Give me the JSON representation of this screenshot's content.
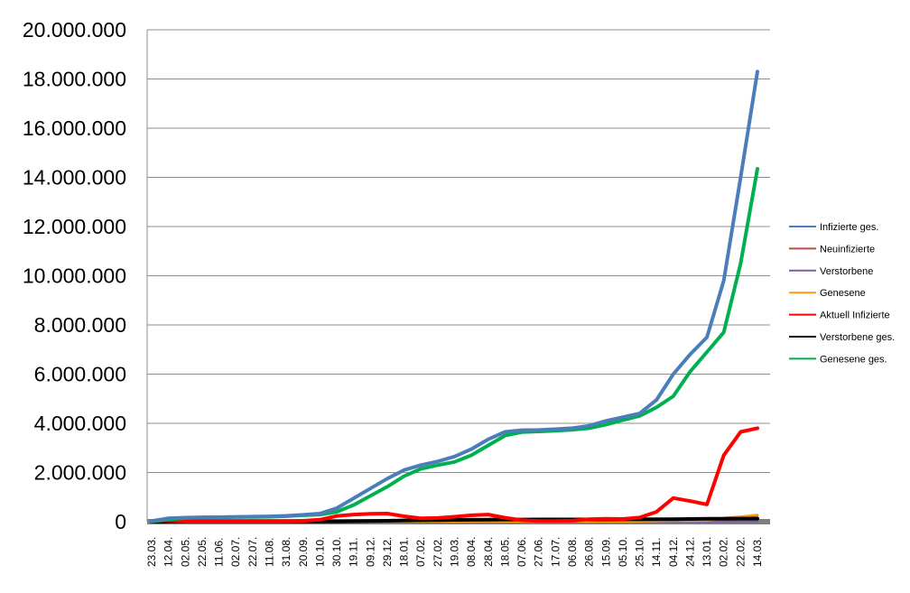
{
  "chart_data": {
    "type": "line",
    "title": "",
    "xlabel": "",
    "ylabel": "",
    "ylim": [
      0,
      20000000
    ],
    "yticks": [
      "0",
      "2.000.000",
      "4.000.000",
      "6.000.000",
      "8.000.000",
      "10.000.000",
      "12.000.000",
      "14.000.000",
      "16.000.000",
      "18.000.000",
      "20.000.000"
    ],
    "grid": "horizontal",
    "legend_position": "right",
    "categories": [
      "23.03.",
      "12.04.",
      "02.05.",
      "22.05.",
      "11.06.",
      "02.07.",
      "22.07.",
      "11.08.",
      "31.08.",
      "20.09.",
      "10.10.",
      "30.10.",
      "19.11.",
      "09.12.",
      "29.12.",
      "18.01.",
      "07.02.",
      "27.02.",
      "19.03.",
      "08.04.",
      "28.04.",
      "18.05.",
      "07.06.",
      "27.06.",
      "17.07.",
      "06.08.",
      "26.08.",
      "15.09.",
      "05.10.",
      "25.10.",
      "14.11.",
      "04.12.",
      "24.12.",
      "13.01.",
      "02.02.",
      "22.02.",
      "14.03."
    ],
    "series": [
      {
        "name": "Infizierte ges.",
        "color": "#4a7ebb",
        "values": [
          30000,
          140000,
          165000,
          178000,
          185000,
          195000,
          205000,
          215000,
          240000,
          280000,
          330000,
          550000,
          950000,
          1350000,
          1750000,
          2100000,
          2300000,
          2450000,
          2650000,
          2950000,
          3350000,
          3650000,
          3720000,
          3730000,
          3760000,
          3800000,
          3900000,
          4100000,
          4250000,
          4400000,
          4950000,
          6000000,
          6800000,
          7500000,
          9800000,
          14000000,
          18300000
        ]
      },
      {
        "name": "Neuinfizierte",
        "color": "#be4b48",
        "values": [
          3000,
          2000,
          1000,
          500,
          300,
          400,
          800,
          1200,
          1500,
          2500,
          5000,
          15000,
          20000,
          22000,
          18000,
          12000,
          8000,
          9000,
          12000,
          18000,
          15000,
          6000,
          1500,
          800,
          1000,
          2500,
          7000,
          9000,
          10000,
          18000,
          40000,
          45000,
          38000,
          60000,
          150000,
          200000,
          250000
        ]
      },
      {
        "name": "Verstorbene",
        "color": "#7d60a0",
        "values": [
          50,
          200,
          150,
          80,
          30,
          10,
          5,
          5,
          5,
          10,
          30,
          150,
          300,
          600,
          800,
          700,
          500,
          300,
          200,
          250,
          250,
          150,
          80,
          40,
          20,
          15,
          20,
          30,
          40,
          80,
          200,
          300,
          400,
          300,
          250,
          200,
          250
        ]
      },
      {
        "name": "Genesene",
        "color": "#f59d10",
        "values": [
          100,
          3000,
          3000,
          1500,
          500,
          300,
          400,
          800,
          1200,
          2000,
          4000,
          12000,
          18000,
          20000,
          20000,
          15000,
          10000,
          9000,
          11000,
          16000,
          17000,
          10000,
          3000,
          1000,
          800,
          2000,
          5000,
          8000,
          9000,
          14000,
          30000,
          42000,
          40000,
          50000,
          120000,
          200000,
          280000
        ]
      },
      {
        "name": "Aktuell Infizierte",
        "color": "#ff0000",
        "values": [
          25000,
          60000,
          20000,
          10000,
          8000,
          7000,
          10000,
          15000,
          20000,
          35000,
          80000,
          230000,
          290000,
          320000,
          330000,
          220000,
          140000,
          150000,
          200000,
          260000,
          290000,
          160000,
          60000,
          30000,
          25000,
          40000,
          100000,
          120000,
          110000,
          170000,
          400000,
          960000,
          840000,
          700000,
          2700000,
          3650000,
          3800000
        ]
      },
      {
        "name": "Verstorbene ges.",
        "color": "#000000",
        "values": [
          1000,
          5000,
          7000,
          8500,
          9000,
          9100,
          9200,
          9300,
          9400,
          9500,
          10000,
          12000,
          17000,
          25000,
          35000,
          50000,
          60000,
          67000,
          72000,
          77000,
          82000,
          87000,
          89000,
          90000,
          90500,
          91000,
          92000,
          93000,
          94000,
          95000,
          99000,
          104000,
          110000,
          117000,
          120000,
          123000,
          125000
        ]
      },
      {
        "name": "Genesene ges.",
        "color": "#00b050",
        "values": [
          10000,
          90000,
          150000,
          170000,
          180000,
          190000,
          195000,
          200000,
          225000,
          260000,
          290000,
          400000,
          680000,
          1050000,
          1420000,
          1850000,
          2150000,
          2300000,
          2430000,
          2700000,
          3100000,
          3500000,
          3640000,
          3670000,
          3700000,
          3740000,
          3800000,
          3950000,
          4130000,
          4300000,
          4650000,
          5100000,
          6100000,
          6900000,
          7700000,
          10500000,
          14350000
        ]
      }
    ]
  }
}
